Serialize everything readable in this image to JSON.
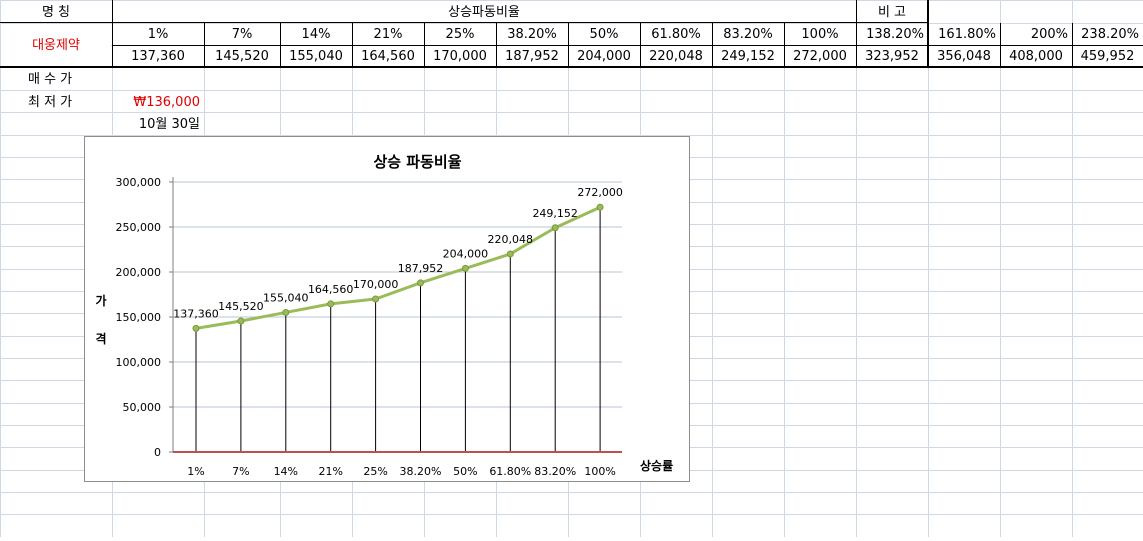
{
  "sheet": {
    "row1": {
      "name_header": "명      칭",
      "ratio_header": "상승파동비율",
      "note_header": "비      고"
    },
    "company": "대웅제약",
    "percents": [
      "1%",
      "7%",
      "14%",
      "21%",
      "25%",
      "38.20%",
      "50%",
      "61.80%",
      "83.20%",
      "100%",
      "138.20%",
      "161.80%",
      "200%",
      "238.20%"
    ],
    "prices": [
      "137,360",
      "145,520",
      "155,040",
      "164,560",
      "170,000",
      "187,952",
      "204,000",
      "220,048",
      "249,152",
      "272,000",
      "323,952",
      "356,048",
      "408,000",
      "459,952"
    ],
    "buy_price_label": "매 수 가",
    "low_price_label": "최 저 가",
    "low_price_value": "₩136,000",
    "date_value": "10월 30일"
  },
  "chart_data": {
    "type": "line",
    "title": "상승 파동비율",
    "xlabel": "상승률",
    "ylabel": "가격",
    "categories": [
      "1%",
      "7%",
      "14%",
      "21%",
      "25%",
      "38.20%",
      "50%",
      "61.80%",
      "83.20%",
      "100%"
    ],
    "values": [
      137360,
      145520,
      155040,
      164560,
      170000,
      187952,
      204000,
      220048,
      249152,
      272000
    ],
    "data_labels": [
      "137,360",
      "145,520",
      "155,040",
      "164,560",
      "170,000",
      "187,952",
      "204,000",
      "220,048",
      "249,152",
      "272,000"
    ],
    "yticks": [
      "0",
      "50,000",
      "100,000",
      "150,000",
      "200,000",
      "250,000",
      "300,000"
    ],
    "ylim": [
      0,
      300000
    ],
    "grid": true,
    "legend": "none",
    "series_color": "#9bbb59",
    "baseline_color": "#c0504d",
    "drop_line_color": "#000000",
    "gridline_color": "#b8c4d4"
  }
}
